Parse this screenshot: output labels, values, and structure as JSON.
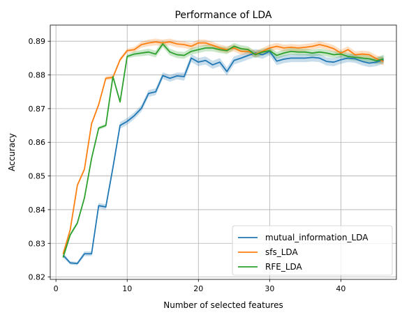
{
  "chart_data": {
    "type": "line",
    "title": "Performance of LDA",
    "xlabel": "Number of selected features",
    "ylabel": "Accuracy",
    "xlim": [
      -0.8,
      47.8
    ],
    "ylim": [
      0.8193,
      0.8948
    ],
    "xticks": [
      0,
      10,
      20,
      30,
      40
    ],
    "xtick_labels": [
      "0",
      "10",
      "20",
      "30",
      "40"
    ],
    "yticks": [
      0.82,
      0.83,
      0.84,
      0.85,
      0.86,
      0.87,
      0.88,
      0.89
    ],
    "ytick_labels": [
      "0.82",
      "0.83",
      "0.84",
      "0.85",
      "0.86",
      "0.87",
      "0.88",
      "0.89"
    ],
    "grid": true,
    "legend_position": "lower right",
    "x": [
      1,
      2,
      3,
      4,
      5,
      6,
      7,
      8,
      9,
      10,
      11,
      12,
      13,
      14,
      15,
      16,
      17,
      18,
      19,
      20,
      21,
      22,
      23,
      24,
      25,
      26,
      27,
      28,
      29,
      30,
      31,
      32,
      33,
      34,
      35,
      36,
      37,
      38,
      39,
      40,
      41,
      42,
      43,
      44,
      45,
      46
    ],
    "series": [
      {
        "name": "mutual_information_LDA",
        "color": "#1f77b4",
        "values": [
          0.8265,
          0.8242,
          0.824,
          0.8269,
          0.8269,
          0.8412,
          0.8408,
          0.8525,
          0.865,
          0.8662,
          0.8679,
          0.8701,
          0.8745,
          0.875,
          0.8798,
          0.879,
          0.8797,
          0.8795,
          0.885,
          0.8838,
          0.8843,
          0.883,
          0.8838,
          0.881,
          0.8843,
          0.885,
          0.8858,
          0.8865,
          0.886,
          0.887,
          0.8841,
          0.8847,
          0.885,
          0.885,
          0.885,
          0.8852,
          0.885,
          0.884,
          0.8838,
          0.8845,
          0.885,
          0.8848,
          0.884,
          0.8835,
          0.8838,
          0.8845
        ],
        "band": [
          0.0007,
          0.0005,
          0.0005,
          0.0007,
          0.0007,
          0.0008,
          0.0008,
          0.001,
          0.001,
          0.001,
          0.001,
          0.001,
          0.001,
          0.001,
          0.001,
          0.001,
          0.001,
          0.0012,
          0.0012,
          0.0012,
          0.0012,
          0.0012,
          0.0012,
          0.0012,
          0.0012,
          0.0012,
          0.0012,
          0.0012,
          0.0012,
          0.0012,
          0.0012,
          0.0012,
          0.0012,
          0.0012,
          0.0012,
          0.0012,
          0.0012,
          0.0012,
          0.0012,
          0.0012,
          0.0012,
          0.0012,
          0.0012,
          0.0012,
          0.0012,
          0.0012
        ]
      },
      {
        "name": "sfs_LDA",
        "color": "#ff7f0e",
        "values": [
          0.8268,
          0.834,
          0.8472,
          0.852,
          0.8655,
          0.8712,
          0.879,
          0.8793,
          0.8845,
          0.8872,
          0.8875,
          0.889,
          0.8895,
          0.8898,
          0.8895,
          0.8898,
          0.8892,
          0.889,
          0.8885,
          0.8895,
          0.8895,
          0.8888,
          0.888,
          0.8875,
          0.888,
          0.887,
          0.887,
          0.8862,
          0.887,
          0.888,
          0.8885,
          0.888,
          0.8882,
          0.888,
          0.8882,
          0.8885,
          0.889,
          0.8885,
          0.8878,
          0.8865,
          0.8875,
          0.886,
          0.8862,
          0.886,
          0.8848,
          0.884
        ],
        "band": [
          0.0005,
          0.0005,
          0.0005,
          0.0005,
          0.0006,
          0.0006,
          0.0006,
          0.0006,
          0.0006,
          0.0006,
          0.0008,
          0.0009,
          0.001,
          0.001,
          0.001,
          0.001,
          0.001,
          0.001,
          0.001,
          0.001,
          0.001,
          0.001,
          0.001,
          0.001,
          0.001,
          0.001,
          0.001,
          0.001,
          0.001,
          0.001,
          0.001,
          0.001,
          0.001,
          0.001,
          0.001,
          0.001,
          0.001,
          0.001,
          0.001,
          0.001,
          0.001,
          0.001,
          0.001,
          0.001,
          0.001,
          0.0012
        ]
      },
      {
        "name": "RFE_LDA",
        "color": "#2ca02c",
        "values": [
          0.8258,
          0.8325,
          0.836,
          0.8435,
          0.8552,
          0.8642,
          0.865,
          0.8795,
          0.872,
          0.8855,
          0.8862,
          0.8865,
          0.8868,
          0.8862,
          0.8892,
          0.8868,
          0.886,
          0.8858,
          0.887,
          0.8875,
          0.888,
          0.888,
          0.8875,
          0.8872,
          0.8885,
          0.8878,
          0.8875,
          0.886,
          0.8868,
          0.8872,
          0.8858,
          0.8865,
          0.887,
          0.8868,
          0.8868,
          0.8865,
          0.8868,
          0.8865,
          0.886,
          0.8862,
          0.8855,
          0.8852,
          0.885,
          0.8848,
          0.8842,
          0.8848
        ],
        "band": [
          0.0005,
          0.0005,
          0.0005,
          0.0005,
          0.0005,
          0.0005,
          0.0005,
          0.0006,
          0.0006,
          0.0006,
          0.0008,
          0.0009,
          0.001,
          0.001,
          0.001,
          0.001,
          0.001,
          0.001,
          0.001,
          0.001,
          0.001,
          0.001,
          0.001,
          0.001,
          0.001,
          0.001,
          0.001,
          0.001,
          0.001,
          0.001,
          0.001,
          0.001,
          0.001,
          0.001,
          0.001,
          0.001,
          0.001,
          0.001,
          0.001,
          0.001,
          0.001,
          0.001,
          0.001,
          0.001,
          0.001,
          0.0012
        ]
      }
    ]
  }
}
